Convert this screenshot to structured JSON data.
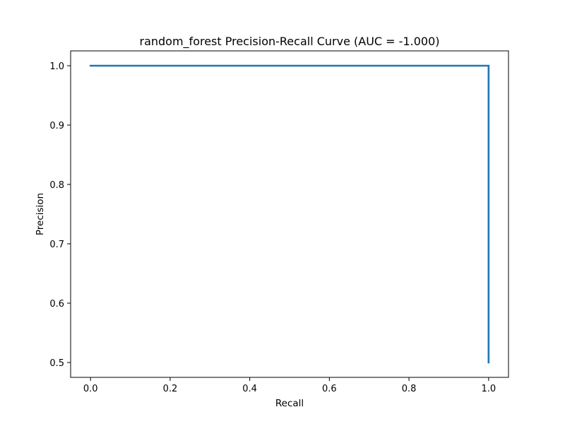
{
  "chart_data": {
    "type": "line",
    "title": "random_forest Precision-Recall Curve (AUC = -1.000)",
    "xlabel": "Recall",
    "ylabel": "Precision",
    "xlim": [
      -0.05,
      1.05
    ],
    "ylim": [
      0.475,
      1.025
    ],
    "xticks": [
      0.0,
      0.2,
      0.4,
      0.6,
      0.8,
      1.0
    ],
    "xtick_labels": [
      "0.0",
      "0.2",
      "0.4",
      "0.6",
      "0.8",
      "1.0"
    ],
    "yticks": [
      0.5,
      0.6,
      0.7,
      0.8,
      0.9,
      1.0
    ],
    "ytick_labels": [
      "0.5",
      "0.6",
      "0.7",
      "0.8",
      "0.9",
      "1.0"
    ],
    "grid": false,
    "legend": "none",
    "series": [
      {
        "color": "#1f77b4",
        "x": [
          0.0,
          1.0,
          1.0
        ],
        "y": [
          1.0,
          1.0,
          0.5
        ]
      }
    ]
  }
}
